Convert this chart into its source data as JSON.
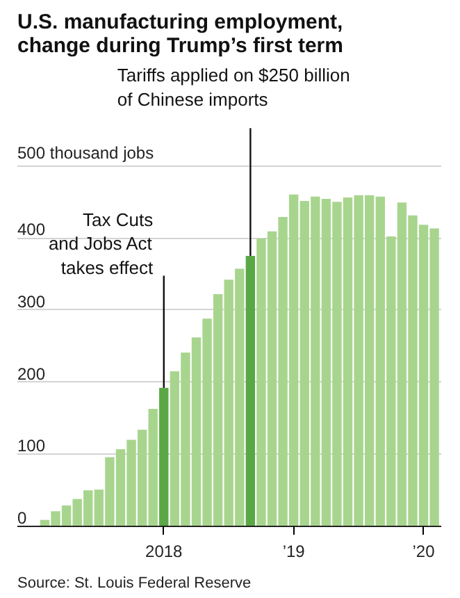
{
  "chart_data": {
    "type": "bar",
    "title": "U.S. manufacturing employment,\nchange during Trump’s first term",
    "x": [
      "2017-02",
      "2017-03",
      "2017-04",
      "2017-05",
      "2017-06",
      "2017-07",
      "2017-08",
      "2017-09",
      "2017-10",
      "2017-11",
      "2017-12",
      "2018-01",
      "2018-02",
      "2018-03",
      "2018-04",
      "2018-05",
      "2018-06",
      "2018-07",
      "2018-08",
      "2018-09",
      "2018-10",
      "2018-11",
      "2018-12",
      "2019-01",
      "2019-02",
      "2019-03",
      "2019-04",
      "2019-05",
      "2019-06",
      "2019-07",
      "2019-08",
      "2019-09",
      "2019-10",
      "2019-11",
      "2019-12",
      "2020-01",
      "2020-02"
    ],
    "values": [
      9,
      21,
      29,
      38,
      50,
      51,
      96,
      107,
      120,
      134,
      163,
      192,
      215,
      241,
      262,
      288,
      322,
      342,
      357,
      375,
      399,
      409,
      429,
      460,
      451,
      457,
      454,
      450,
      456,
      459,
      459,
      457,
      402,
      449,
      431,
      418,
      413
    ],
    "colors": [
      "#a8d58e",
      "#a8d58e",
      "#a8d58e",
      "#a8d58e",
      "#a8d58e",
      "#a8d58e",
      "#a8d58e",
      "#a8d58e",
      "#a8d58e",
      "#a8d58e",
      "#a8d58e",
      "#5aa845",
      "#a8d58e",
      "#a8d58e",
      "#a8d58e",
      "#a8d58e",
      "#a8d58e",
      "#a8d58e",
      "#a8d58e",
      "#5aa845",
      "#a8d58e",
      "#a8d58e",
      "#a8d58e",
      "#a8d58e",
      "#a8d58e",
      "#a8d58e",
      "#a8d58e",
      "#a8d58e",
      "#a8d58e",
      "#a8d58e",
      "#a8d58e",
      "#a8d58e",
      "#a8d58e",
      "#a8d58e",
      "#a8d58e",
      "#a8d58e",
      "#a8d58e"
    ],
    "xlim": [
      "2016-11-15",
      "2020-02-20"
    ],
    "xticks": [
      {
        "value": "2018-01",
        "label": "2018"
      },
      {
        "value": "2019-01",
        "label": "’19"
      },
      {
        "value": "2020-01",
        "label": "’20"
      }
    ],
    "ylim": [
      0,
      500
    ],
    "yticks": [
      0,
      100,
      200,
      300,
      400,
      {
        "value": 500,
        "label": "500 thousand jobs"
      }
    ],
    "grid": "y",
    "annotations": [
      {
        "text": "Tax Cuts\nand Jobs Act\ntakes effect",
        "x": "2018-01",
        "y": 192
      },
      {
        "text": "Tariffs applied on $250 billion\nof Chinese imports",
        "x": "2018-09",
        "y": 375
      },
      "Source: St. Louis Federal Reserve"
    ]
  }
}
